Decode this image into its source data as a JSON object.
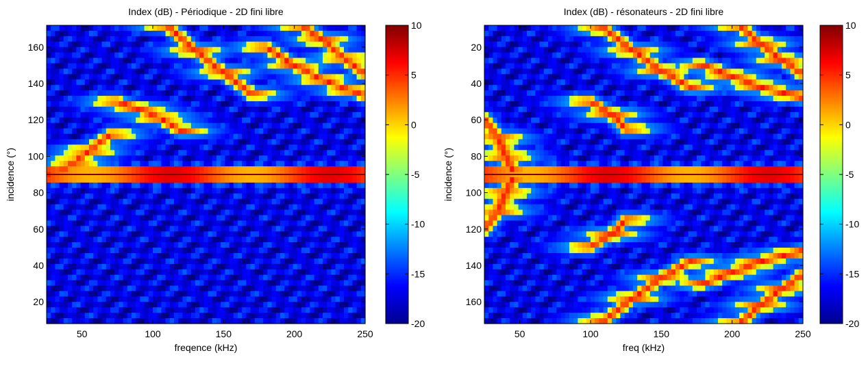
{
  "chart_data": [
    {
      "type": "heatmap",
      "title": "Index (dB) - Périodique - 2D fini libre",
      "xlabel": "freqence (kHz)",
      "ylabel": "incidence (°)",
      "xlim": [
        25,
        250
      ],
      "ylim": [
        8,
        172
      ],
      "y_direction": "up",
      "x_ticks": [
        50,
        100,
        150,
        200,
        250
      ],
      "y_ticks": [
        20,
        40,
        60,
        80,
        100,
        120,
        140,
        160
      ],
      "colorbar": {
        "colormap": "jet",
        "range": [
          -20,
          10
        ],
        "ticks": [
          10,
          5,
          0,
          -5,
          -10,
          -15,
          -20
        ]
      },
      "features": {
        "horizontal_band_deg": 90,
        "symmetric_about_deg": 90,
        "curves": [
          {
            "x": [
              25,
              35,
              45,
              55,
              70
            ],
            "y": [
              90,
              92,
              97,
              103,
              112
            ]
          },
          {
            "x": [
              75,
              90,
              105,
              120
            ],
            "y": [
              130,
              126,
              121,
              114
            ]
          },
          {
            "x": [
              110,
              130,
              150,
              170
            ],
            "y": [
              172,
              158,
              146,
              134
            ]
          },
          {
            "x": [
              180,
              200,
              220,
              240,
              250
            ],
            "y": [
              160,
              150,
              142,
              136,
              133
            ]
          },
          {
            "x": [
              205,
              220,
              235,
              250
            ],
            "y": [
              172,
              164,
              154,
              145
            ]
          }
        ]
      }
    },
    {
      "type": "heatmap",
      "title": "Index (dB) - résonateurs - 2D fini libre",
      "xlabel": "freq (kHz)",
      "ylabel": "incidence (°)",
      "xlim": [
        25,
        250
      ],
      "ylim": [
        8,
        172
      ],
      "y_direction": "down",
      "x_ticks": [
        50,
        100,
        150,
        200,
        250
      ],
      "y_ticks": [
        20,
        40,
        60,
        80,
        100,
        120,
        140,
        160
      ],
      "colorbar": {
        "colormap": "jet",
        "range": [
          -20,
          10
        ],
        "ticks": [
          10,
          5,
          0,
          -5,
          -10,
          -15,
          -20
        ]
      },
      "features": {
        "horizontal_band_deg": 90,
        "symmetric_about_deg": 90,
        "curves": [
          {
            "x": [
              25,
              35,
              40,
              45
            ],
            "y": [
              60,
              70,
              80,
              88
            ]
          },
          {
            "x": [
              100,
              115,
              125
            ],
            "y": [
              50,
              57,
              65
            ]
          },
          {
            "x": [
              110,
              130,
              150,
              170
            ],
            "y": [
              10,
              22,
              33,
              42
            ]
          },
          {
            "x": [
              180,
              200,
              220,
              240,
              250
            ],
            "y": [
              30,
              36,
              42,
              46,
              48
            ]
          },
          {
            "x": [
              205,
              220,
              235,
              250
            ],
            "y": [
              8,
              18,
              27,
              35
            ]
          }
        ]
      }
    }
  ]
}
